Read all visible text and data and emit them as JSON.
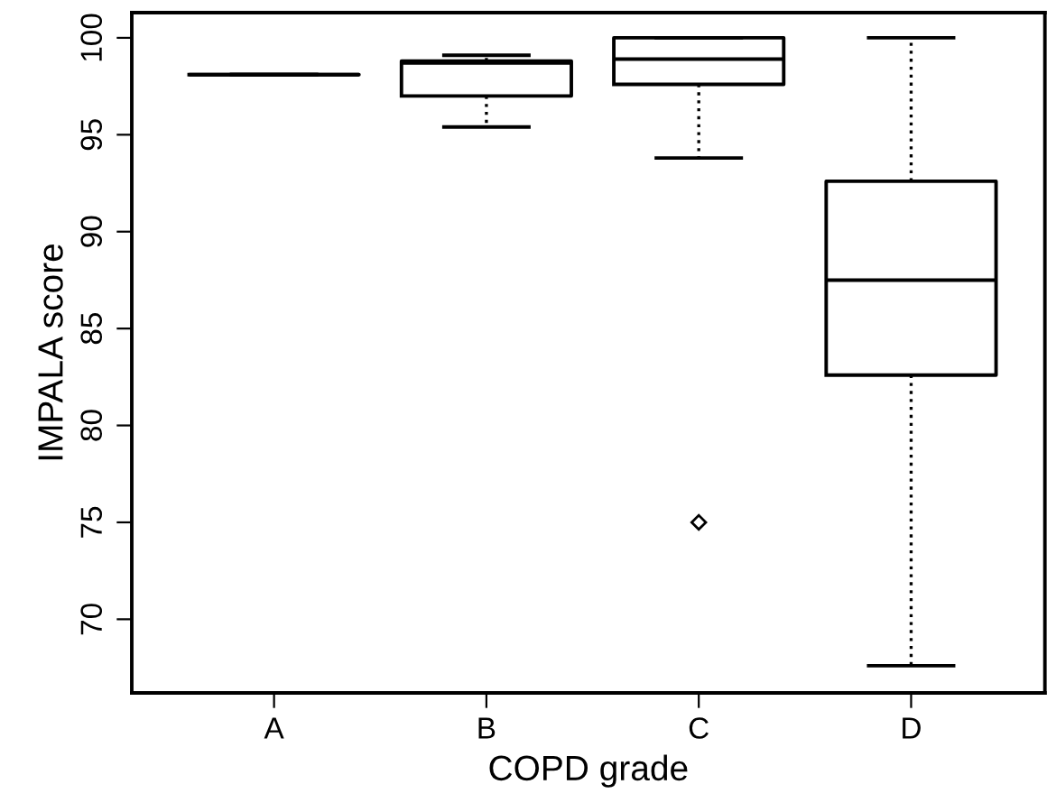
{
  "chart_data": {
    "type": "box",
    "xlabel": "COPD grade",
    "ylabel": "IMPALA score",
    "categories": [
      "A",
      "B",
      "C",
      "D"
    ],
    "boxes": [
      {
        "low": 98.1,
        "q1": 98.1,
        "median": 98.1,
        "q3": 98.1,
        "high": 98.1
      },
      {
        "low": 95.4,
        "q1": 97.0,
        "median": 98.7,
        "q3": 98.8,
        "high": 99.1
      },
      {
        "low": 93.8,
        "q1": 97.6,
        "median": 98.9,
        "q3": 100,
        "high": 100,
        "outliers": [
          75
        ]
      },
      {
        "low": 67.6,
        "q1": 82.6,
        "median": 87.5,
        "q3": 92.6,
        "high": 100
      }
    ],
    "color": "#000000",
    "ylim": [
      66.2,
      101.3
    ],
    "yticks": [
      70,
      75,
      80,
      85,
      90,
      95,
      100
    ],
    "grid": false,
    "line_style": "dotted",
    "marker": "diamond"
  }
}
